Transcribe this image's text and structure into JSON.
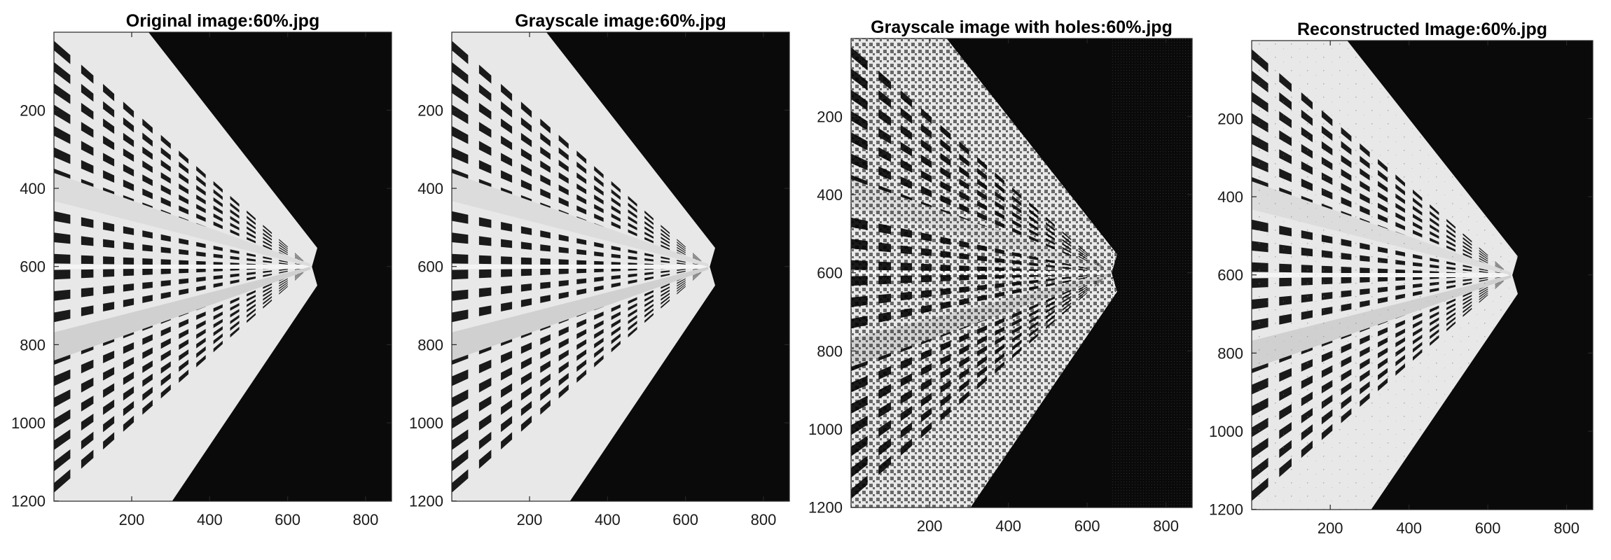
{
  "chart_data": [
    {
      "type": "image",
      "title": "Original image:60%.jpg",
      "x_ticks": [
        200,
        400,
        600,
        800
      ],
      "y_ticks": [
        200,
        400,
        600,
        800,
        1000,
        1200
      ],
      "xlim": [
        0.5,
        866.5
      ],
      "ylim": [
        0.5,
        1200.5
      ],
      "y_direction": "reverse",
      "variant": "original"
    },
    {
      "type": "image",
      "title": "Grayscale image:60%.jpg",
      "x_ticks": [
        200,
        400,
        600,
        800
      ],
      "y_ticks": [
        200,
        400,
        600,
        800,
        1000,
        1200
      ],
      "xlim": [
        0.5,
        866.5
      ],
      "ylim": [
        0.5,
        1200.5
      ],
      "y_direction": "reverse",
      "variant": "grayscale"
    },
    {
      "type": "image",
      "title": "Grayscale image with holes:60%.jpg",
      "x_ticks": [
        200,
        400,
        600,
        800
      ],
      "y_ticks": [
        200,
        400,
        600,
        800,
        1000,
        1200
      ],
      "xlim": [
        0.5,
        866.5
      ],
      "ylim": [
        0.5,
        1200.5
      ],
      "y_direction": "reverse",
      "variant": "holes"
    },
    {
      "type": "image",
      "title": "Reconstructed Image:60%.jpg",
      "x_ticks": [
        200,
        400,
        600,
        800
      ],
      "y_ticks": [
        200,
        400,
        600,
        800,
        1000,
        1200
      ],
      "xlim": [
        0.5,
        866.5
      ],
      "ylim": [
        0.5,
        1200.5
      ],
      "y_direction": "reverse",
      "variant": "reconstructed"
    }
  ],
  "colors": {
    "background": "#0a0a0a",
    "facade": "#e8e8e8",
    "window": "#1a1a1a",
    "hole": "#000000"
  }
}
